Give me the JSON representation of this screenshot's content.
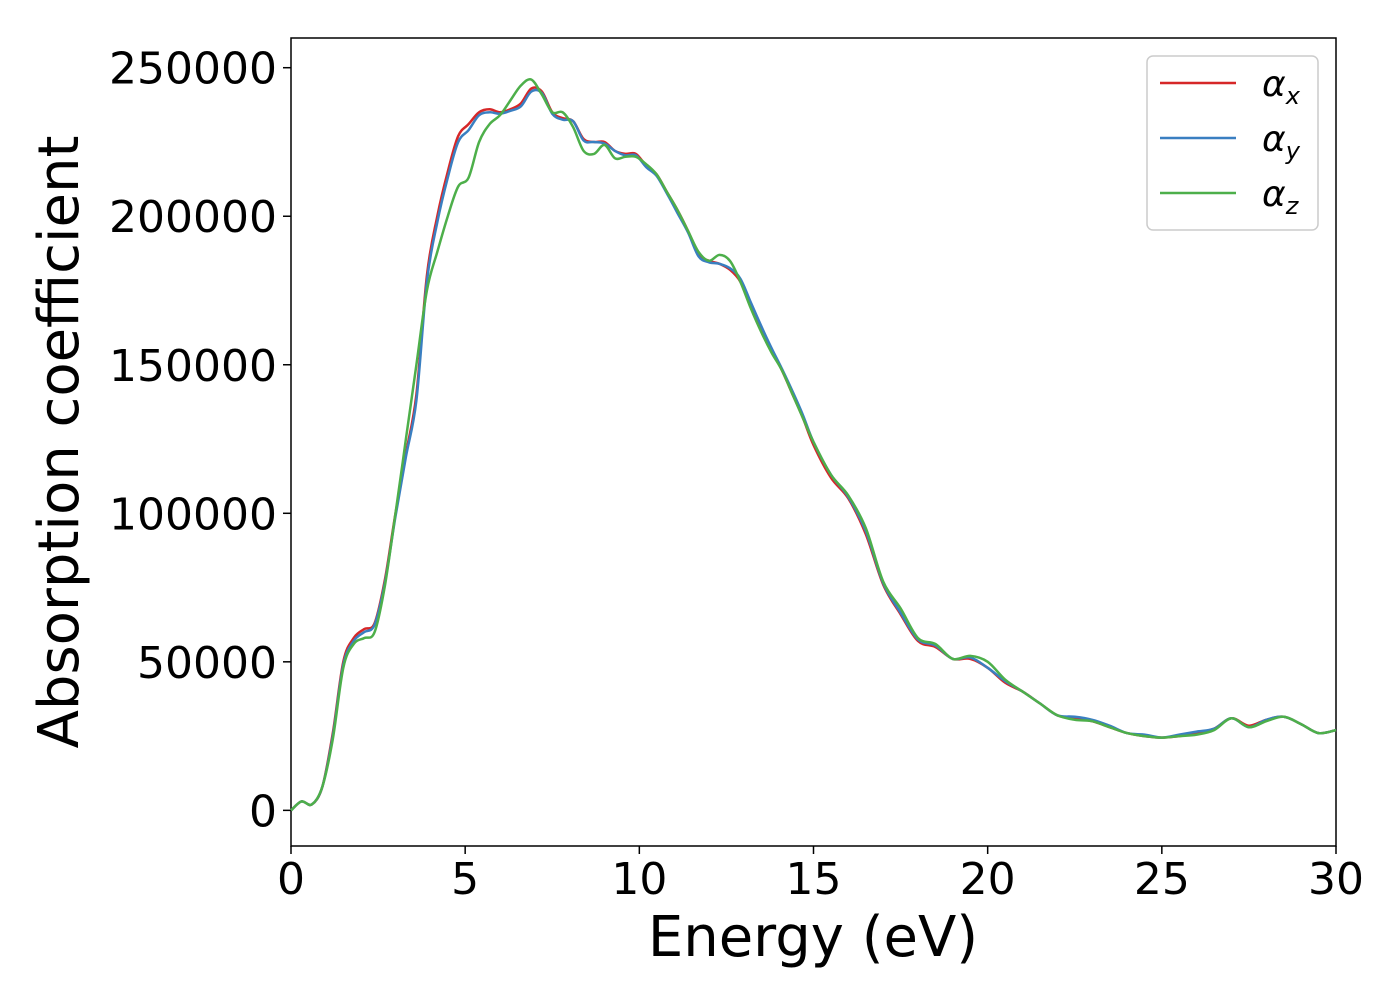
{
  "chart_data": {
    "type": "line",
    "xlabel": "Energy (eV)",
    "ylabel": "Absorption coefficient",
    "xlim": [
      0,
      30
    ],
    "ylim": [
      -12000,
      260000
    ],
    "xticks": [
      0,
      5,
      10,
      15,
      20,
      25,
      30
    ],
    "yticks": [
      0,
      50000,
      100000,
      150000,
      200000,
      250000
    ],
    "grid": false,
    "legend_position": "top-right",
    "series": [
      {
        "name": "α",
        "subscript": "x",
        "color": "#d62728",
        "x": [
          0,
          0.3,
          0.6,
          0.9,
          1.2,
          1.5,
          1.8,
          2.1,
          2.4,
          2.7,
          3.0,
          3.3,
          3.6,
          3.9,
          4.2,
          4.5,
          4.8,
          5.1,
          5.4,
          5.7,
          6.0,
          6.3,
          6.6,
          6.9,
          7.2,
          7.5,
          7.8,
          8.1,
          8.4,
          8.7,
          9.0,
          9.3,
          9.6,
          9.9,
          10.2,
          10.5,
          10.8,
          11.1,
          11.4,
          11.7,
          12.0,
          12.3,
          12.6,
          12.9,
          13.2,
          13.5,
          13.8,
          14.1,
          14.4,
          14.7,
          15.0,
          15.5,
          16.0,
          16.5,
          17.0,
          17.5,
          18.0,
          18.5,
          19.0,
          19.5,
          20.0,
          20.5,
          21.0,
          21.5,
          22.0,
          22.5,
          23.0,
          23.5,
          24.0,
          24.5,
          25.0,
          25.5,
          26.0,
          26.5,
          27.0,
          27.5,
          28.0,
          28.5,
          29.0,
          29.5,
          30.0
        ],
        "y": [
          0,
          3000,
          2000,
          8000,
          26000,
          50000,
          58000,
          61000,
          63000,
          78000,
          100000,
          120000,
          140000,
          180000,
          200000,
          215000,
          227000,
          231000,
          235000,
          236000,
          235000,
          236000,
          238000,
          243000,
          242000,
          235000,
          233000,
          232000,
          226000,
          225000,
          225000,
          222000,
          221000,
          221000,
          217000,
          214000,
          208000,
          202000,
          195000,
          187000,
          185000,
          184000,
          182000,
          178000,
          170000,
          162000,
          155000,
          148000,
          140000,
          132000,
          123000,
          112000,
          105000,
          93000,
          76000,
          66000,
          57000,
          55000,
          51000,
          51000,
          48000,
          43000,
          40000,
          36000,
          32000,
          31000,
          30000,
          28000,
          26000,
          25000,
          24500,
          25000,
          26000,
          27500,
          31000,
          28500,
          30500,
          31500,
          29000,
          26000,
          27000
        ]
      },
      {
        "name": "α",
        "subscript": "y",
        "color": "#3a7fc1",
        "x": [
          0,
          0.3,
          0.6,
          0.9,
          1.2,
          1.5,
          1.8,
          2.1,
          2.4,
          2.7,
          3.0,
          3.3,
          3.6,
          3.9,
          4.2,
          4.5,
          4.8,
          5.1,
          5.4,
          5.7,
          6.0,
          6.3,
          6.6,
          6.9,
          7.2,
          7.5,
          7.8,
          8.1,
          8.4,
          8.7,
          9.0,
          9.3,
          9.6,
          9.9,
          10.2,
          10.5,
          10.8,
          11.1,
          11.4,
          11.7,
          12.0,
          12.3,
          12.6,
          12.9,
          13.2,
          13.5,
          13.8,
          14.1,
          14.4,
          14.7,
          15.0,
          15.5,
          16.0,
          16.5,
          17.0,
          17.5,
          18.0,
          18.5,
          19.0,
          19.5,
          20.0,
          20.5,
          21.0,
          21.5,
          22.0,
          22.5,
          23.0,
          23.5,
          24.0,
          24.5,
          25.0,
          25.5,
          26.0,
          26.5,
          27.0,
          27.5,
          28.0,
          28.5,
          29.0,
          29.5,
          30.0
        ],
        "y": [
          0,
          3000,
          2000,
          8000,
          25000,
          49000,
          57000,
          60000,
          62500,
          77000,
          99000,
          119000,
          138000,
          178000,
          198000,
          213000,
          225000,
          229000,
          234000,
          235000,
          234500,
          235500,
          237000,
          242000,
          241500,
          234500,
          232500,
          232000,
          225500,
          225000,
          224500,
          222000,
          220500,
          220500,
          216500,
          213500,
          207500,
          201000,
          194500,
          186500,
          184500,
          184000,
          182500,
          179000,
          171000,
          163000,
          155500,
          148500,
          141000,
          133000,
          124000,
          113000,
          105500,
          94000,
          76500,
          66500,
          57500,
          55500,
          51000,
          51500,
          48000,
          43500,
          40000,
          36000,
          32000,
          31500,
          30500,
          28500,
          26000,
          25500,
          24500,
          25500,
          26500,
          27500,
          31000,
          28000,
          30500,
          31500,
          29000,
          26000,
          27000
        ]
      },
      {
        "name": "α",
        "subscript": "z",
        "color": "#4daf4a",
        "x": [
          0,
          0.3,
          0.6,
          0.9,
          1.2,
          1.5,
          1.8,
          2.1,
          2.4,
          2.7,
          3.0,
          3.3,
          3.6,
          3.9,
          4.2,
          4.5,
          4.8,
          5.1,
          5.4,
          5.7,
          6.0,
          6.3,
          6.6,
          6.9,
          7.2,
          7.5,
          7.8,
          8.1,
          8.4,
          8.7,
          9.0,
          9.3,
          9.6,
          9.9,
          10.2,
          10.5,
          10.8,
          11.1,
          11.4,
          11.7,
          12.0,
          12.3,
          12.6,
          12.9,
          13.2,
          13.5,
          13.8,
          14.1,
          14.4,
          14.7,
          15.0,
          15.5,
          16.0,
          16.5,
          17.0,
          17.5,
          18.0,
          18.5,
          19.0,
          19.5,
          20.0,
          20.5,
          21.0,
          21.5,
          22.0,
          22.5,
          23.0,
          23.5,
          24.0,
          24.5,
          25.0,
          25.5,
          26.0,
          26.5,
          27.0,
          27.5,
          28.0,
          28.5,
          29.0,
          29.5,
          30.0
        ],
        "y": [
          0,
          3000,
          2000,
          8000,
          24000,
          48000,
          56000,
          58000,
          60000,
          76000,
          100000,
          125000,
          150000,
          175000,
          188000,
          200000,
          210000,
          213000,
          225000,
          231000,
          234000,
          239000,
          244000,
          246000,
          241000,
          235000,
          235000,
          230000,
          222000,
          221000,
          224000,
          219500,
          220000,
          220000,
          217500,
          214000,
          208000,
          202000,
          195000,
          188000,
          185000,
          187000,
          185000,
          178000,
          169000,
          161000,
          154000,
          148000,
          140000,
          132000,
          124000,
          113000,
          106000,
          95000,
          77000,
          68000,
          58000,
          56000,
          51000,
          52000,
          50000,
          44000,
          40000,
          36000,
          32000,
          30500,
          30000,
          28000,
          26000,
          25000,
          24500,
          25000,
          25500,
          27000,
          31000,
          28000,
          30000,
          31500,
          29000,
          26000,
          27000
        ]
      }
    ]
  }
}
